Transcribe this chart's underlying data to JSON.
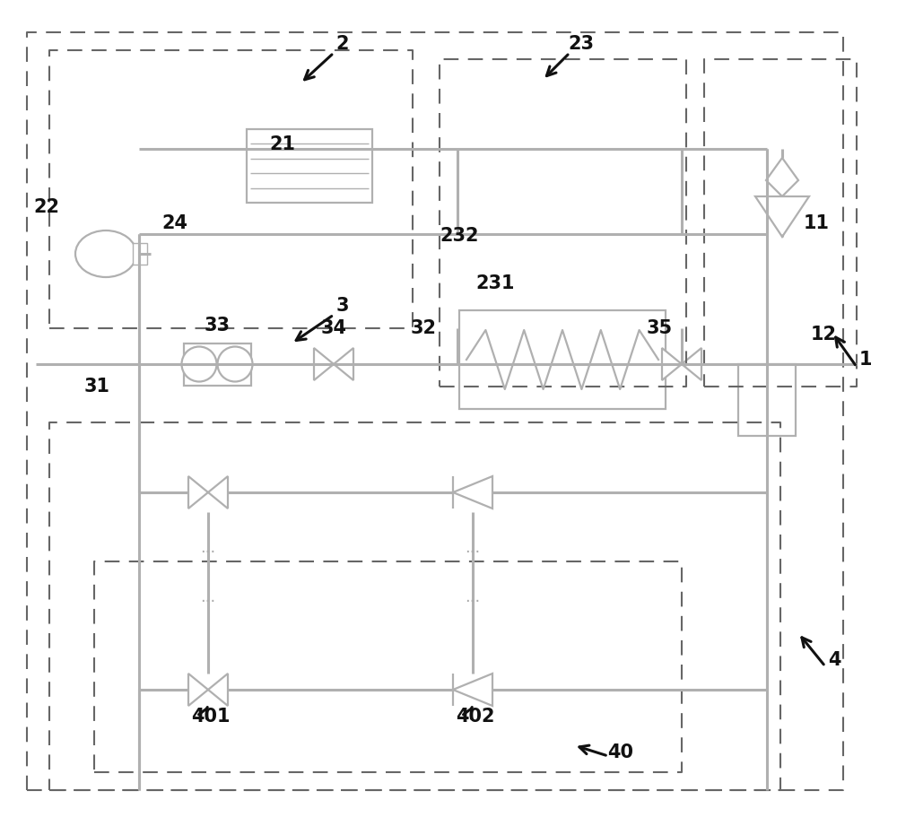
{
  "bg_color": "#ffffff",
  "line_color": "#b0b0b0",
  "dark_color": "#111111",
  "dashed_color": "#666666",
  "fig_width": 10.0,
  "fig_height": 9.21
}
